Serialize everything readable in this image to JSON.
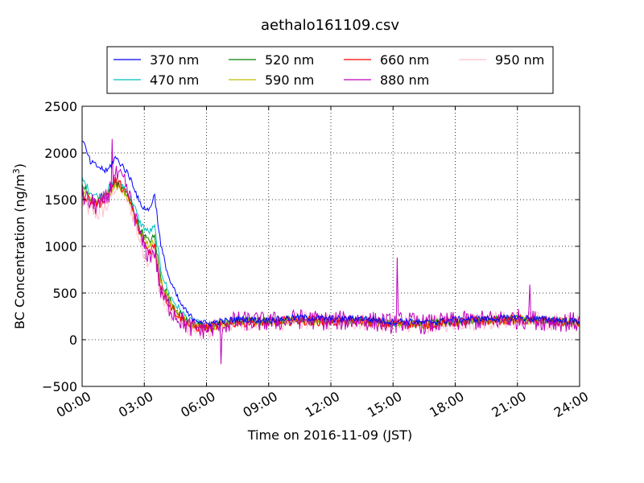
{
  "chart_data": {
    "type": "line",
    "title": "aethalo161109.csv",
    "xlabel": "Time on 2016-11-09 (JST)",
    "ylabel": "BC Concentration (ng/m³)",
    "ylabel_main": "BC Concentration (ng/m",
    "ylabel_sup": "3",
    "ylabel_tail": ")",
    "xlim": [
      0,
      24
    ],
    "ylim": [
      -500,
      2500
    ],
    "x_ticks": [
      0,
      3,
      6,
      9,
      12,
      15,
      18,
      21,
      24
    ],
    "x_tick_labels": [
      "00:00",
      "03:00",
      "06:00",
      "09:00",
      "12:00",
      "15:00",
      "18:00",
      "21:00",
      "24:00"
    ],
    "y_ticks": [
      -500,
      0,
      500,
      1000,
      1500,
      2000,
      2500
    ],
    "y_tick_labels": [
      "−500",
      "0",
      "500",
      "1000",
      "1500",
      "2000",
      "2500"
    ],
    "grid": true,
    "legend_position": "above plot, 4 columns",
    "series": [
      {
        "name": "370 nm",
        "color": "#0000ff",
        "points": [
          [
            0,
            2150
          ],
          [
            0.4,
            1900
          ],
          [
            0.8,
            1850
          ],
          [
            1.2,
            1800
          ],
          [
            1.6,
            1950
          ],
          [
            2.0,
            1850
          ],
          [
            2.4,
            1700
          ],
          [
            2.8,
            1450
          ],
          [
            3.2,
            1380
          ],
          [
            3.5,
            1550
          ],
          [
            3.8,
            1000
          ],
          [
            4.2,
            650
          ],
          [
            4.7,
            400
          ],
          [
            5.2,
            250
          ],
          [
            6,
            170
          ],
          [
            7.5,
            220
          ],
          [
            9,
            210
          ],
          [
            10.5,
            240
          ],
          [
            12,
            220
          ],
          [
            13.5,
            230
          ],
          [
            15,
            190
          ],
          [
            15.5,
            200
          ],
          [
            16.5,
            180
          ],
          [
            18,
            215
          ],
          [
            19.5,
            225
          ],
          [
            21,
            235
          ],
          [
            22.5,
            215
          ],
          [
            24,
            195
          ]
        ]
      },
      {
        "name": "470 nm",
        "color": "#00bfbf",
        "points": [
          [
            0,
            1720
          ],
          [
            0.4,
            1580
          ],
          [
            0.8,
            1530
          ],
          [
            1.2,
            1600
          ],
          [
            1.6,
            1700
          ],
          [
            2.0,
            1650
          ],
          [
            2.4,
            1500
          ],
          [
            2.8,
            1250
          ],
          [
            3.2,
            1150
          ],
          [
            3.5,
            1200
          ],
          [
            3.8,
            750
          ],
          [
            4.2,
            480
          ],
          [
            4.7,
            320
          ],
          [
            5.2,
            200
          ],
          [
            6,
            150
          ],
          [
            7.5,
            210
          ],
          [
            9,
            200
          ],
          [
            10.5,
            225
          ],
          [
            12,
            210
          ],
          [
            13.5,
            215
          ],
          [
            15,
            180
          ],
          [
            15.5,
            190
          ],
          [
            16.5,
            170
          ],
          [
            18,
            200
          ],
          [
            19.5,
            215
          ],
          [
            21,
            225
          ],
          [
            22.5,
            205
          ],
          [
            24,
            190
          ]
        ]
      },
      {
        "name": "520 nm",
        "color": "#008000",
        "points": [
          [
            0,
            1650
          ],
          [
            0.4,
            1520
          ],
          [
            0.8,
            1480
          ],
          [
            1.2,
            1560
          ],
          [
            1.6,
            1680
          ],
          [
            2.0,
            1600
          ],
          [
            2.4,
            1450
          ],
          [
            2.8,
            1180
          ],
          [
            3.2,
            1050
          ],
          [
            3.5,
            1100
          ],
          [
            3.8,
            650
          ],
          [
            4.2,
            430
          ],
          [
            4.7,
            280
          ],
          [
            5.2,
            170
          ],
          [
            6,
            130
          ],
          [
            7.5,
            200
          ],
          [
            9,
            195
          ],
          [
            10.5,
            215
          ],
          [
            12,
            200
          ],
          [
            13.5,
            205
          ],
          [
            15,
            170
          ],
          [
            15.5,
            185
          ],
          [
            16.5,
            165
          ],
          [
            18,
            195
          ],
          [
            19.5,
            210
          ],
          [
            21,
            220
          ],
          [
            22.5,
            200
          ],
          [
            24,
            185
          ]
        ]
      },
      {
        "name": "590 nm",
        "color": "#bfbf00",
        "points": [
          [
            0,
            1600
          ],
          [
            0.4,
            1500
          ],
          [
            0.8,
            1470
          ],
          [
            1.2,
            1550
          ],
          [
            1.6,
            1660
          ],
          [
            2.0,
            1580
          ],
          [
            2.4,
            1420
          ],
          [
            2.8,
            1150
          ],
          [
            3.2,
            1000
          ],
          [
            3.5,
            1050
          ],
          [
            3.8,
            620
          ],
          [
            4.2,
            410
          ],
          [
            4.7,
            270
          ],
          [
            5.2,
            160
          ],
          [
            6,
            125
          ],
          [
            7.5,
            195
          ],
          [
            9,
            190
          ],
          [
            10.5,
            210
          ],
          [
            12,
            195
          ],
          [
            13.5,
            200
          ],
          [
            15,
            165
          ],
          [
            15.5,
            180
          ],
          [
            16.5,
            160
          ],
          [
            18,
            190
          ],
          [
            19.5,
            205
          ],
          [
            21,
            215
          ],
          [
            22.5,
            195
          ],
          [
            24,
            180
          ]
        ]
      },
      {
        "name": "660 nm",
        "color": "#ff0000",
        "points": [
          [
            0,
            1580
          ],
          [
            0.4,
            1480
          ],
          [
            0.8,
            1450
          ],
          [
            1.2,
            1540
          ],
          [
            1.6,
            1700
          ],
          [
            2.0,
            1620
          ],
          [
            2.4,
            1420
          ],
          [
            2.8,
            1120
          ],
          [
            3.2,
            950
          ],
          [
            3.5,
            1000
          ],
          [
            3.8,
            550
          ],
          [
            4.2,
            380
          ],
          [
            4.7,
            250
          ],
          [
            5.2,
            150
          ],
          [
            6,
            120
          ],
          [
            7.5,
            190
          ],
          [
            9,
            190
          ],
          [
            10.5,
            210
          ],
          [
            12,
            195
          ],
          [
            13.5,
            200
          ],
          [
            15,
            165
          ],
          [
            15.5,
            185
          ],
          [
            16.5,
            160
          ],
          [
            18,
            190
          ],
          [
            19.5,
            205
          ],
          [
            21,
            215
          ],
          [
            22.5,
            195
          ],
          [
            24,
            180
          ]
        ]
      },
      {
        "name": "880 nm",
        "color": "#bf00bf",
        "points": [
          [
            0,
            1550
          ],
          [
            0.4,
            1460
          ],
          [
            0.8,
            1430
          ],
          [
            1.2,
            1520
          ],
          [
            1.6,
            1760
          ],
          [
            2.0,
            1700
          ],
          [
            2.4,
            1450
          ],
          [
            2.8,
            1100
          ],
          [
            3.2,
            900
          ],
          [
            3.5,
            950
          ],
          [
            3.8,
            500
          ],
          [
            4.2,
            350
          ],
          [
            4.7,
            220
          ],
          [
            5.2,
            130
          ],
          [
            6,
            110
          ],
          [
            7.5,
            200
          ],
          [
            9,
            190
          ],
          [
            10.5,
            220
          ],
          [
            12,
            200
          ],
          [
            13.5,
            210
          ],
          [
            15,
            170
          ],
          [
            15.5,
            200
          ],
          [
            16.5,
            165
          ],
          [
            18,
            195
          ],
          [
            19.5,
            210
          ],
          [
            21,
            225
          ],
          [
            22.5,
            200
          ],
          [
            24,
            185
          ]
        ]
      },
      {
        "name": "950 nm",
        "color": "#ffc0cb",
        "points": [
          [
            0,
            1480
          ],
          [
            0.4,
            1380
          ],
          [
            0.8,
            1350
          ],
          [
            1.2,
            1430
          ],
          [
            1.6,
            1650
          ],
          [
            2.0,
            1600
          ],
          [
            2.4,
            1380
          ],
          [
            2.8,
            1050
          ],
          [
            3.2,
            850
          ],
          [
            3.5,
            900
          ],
          [
            3.8,
            450
          ],
          [
            4.2,
            320
          ],
          [
            4.7,
            200
          ],
          [
            5.2,
            120
          ],
          [
            6,
            100
          ],
          [
            7.5,
            190
          ],
          [
            9,
            180
          ],
          [
            10.5,
            210
          ],
          [
            12,
            195
          ],
          [
            13.5,
            200
          ],
          [
            15,
            160
          ],
          [
            15.5,
            190
          ],
          [
            16.5,
            155
          ],
          [
            18,
            190
          ],
          [
            19.5,
            205
          ],
          [
            21,
            215
          ],
          [
            22.5,
            195
          ],
          [
            24,
            180
          ]
        ]
      }
    ],
    "annotations": [
      {
        "series": "880 nm",
        "x": 1.45,
        "y": 2150
      },
      {
        "series": "880 nm",
        "x": 15.2,
        "y": 880
      },
      {
        "series": "880 nm",
        "x": 21.6,
        "y": 590
      },
      {
        "series": "880 nm",
        "x": 6.7,
        "y": -260
      }
    ]
  }
}
